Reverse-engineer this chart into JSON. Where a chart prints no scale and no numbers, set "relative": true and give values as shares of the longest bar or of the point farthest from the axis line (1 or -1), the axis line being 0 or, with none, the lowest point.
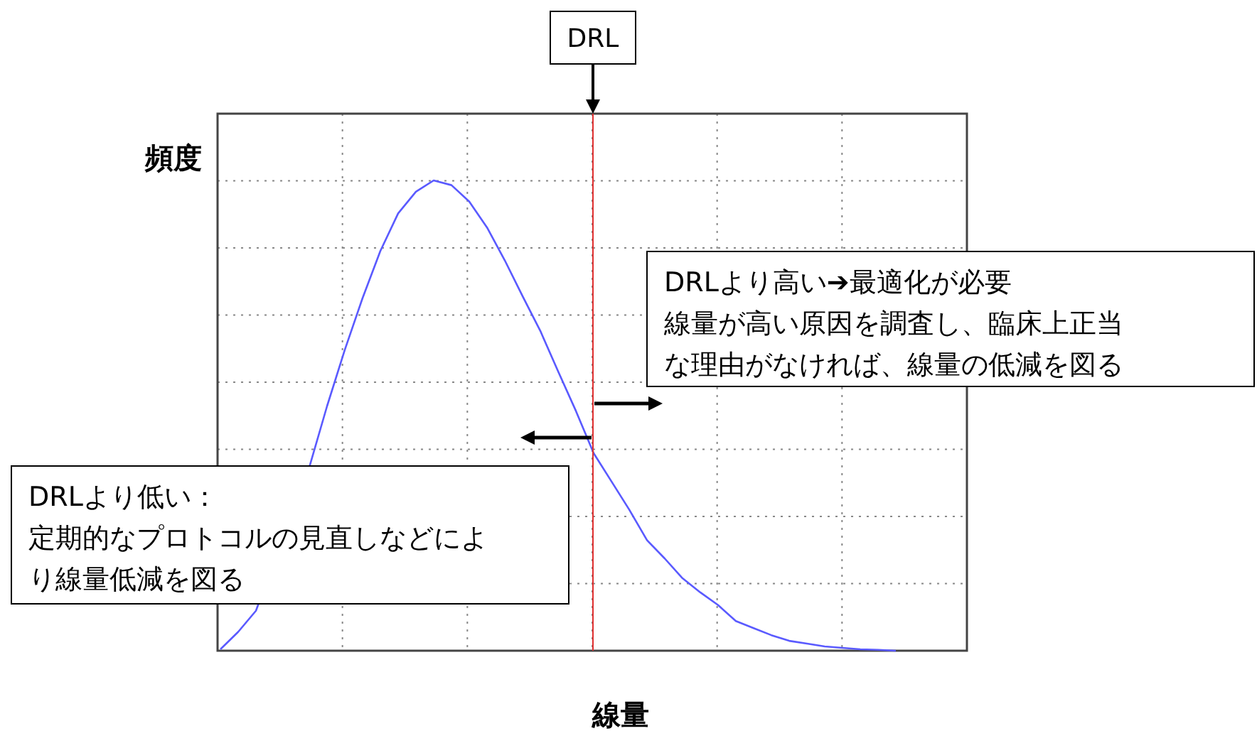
{
  "chart_data": {
    "type": "line",
    "relative": true,
    "xlabel": "線量",
    "ylabel": "頻度",
    "categories": [
      null,
      null,
      null,
      null,
      null,
      null,
      null,
      null,
      null,
      null,
      null,
      null,
      null,
      null,
      null,
      null,
      null,
      null,
      null,
      null,
      null,
      null,
      null,
      null,
      null,
      null,
      null,
      null,
      null,
      null,
      null,
      null,
      null,
      null,
      null,
      null,
      null,
      null,
      null
    ],
    "series": [
      {
        "color": "#5a5aff",
        "values": [
          0.003,
          0.04,
          0.085,
          null,
          null,
          0.39,
          0.52,
          0.64,
          0.75,
          0.85,
          0.93,
          0.976,
          1.0,
          0.99,
          0.955,
          0.9,
          0.83,
          0.754,
          0.68,
          0.594,
          0.51,
          0.42,
          0.36,
          0.3,
          0.235,
          0.196,
          0.154,
          0.124,
          0.097,
          0.063,
          0.048,
          0.033,
          0.021,
          0.015,
          0.009,
          0.006,
          0.003,
          0.002,
          0
        ]
      }
    ],
    "annotations": [
      "DRL",
      "DRLより高い➔最適化が必要",
      "線量が高い原因を調査し、臨床上正当な理由がなければ、線量の低減を図る",
      "DRLより低い：",
      "定期的なプロトコルの見直しなどにより線量低減を図る"
    ],
    "grid": true,
    "marker": "none",
    "line_style": "solid"
  }
}
